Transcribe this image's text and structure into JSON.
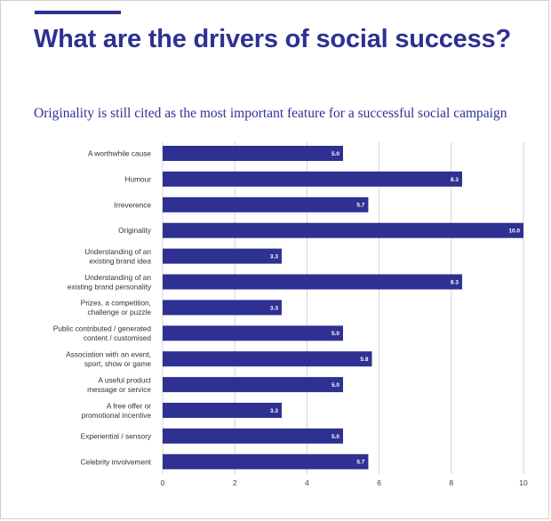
{
  "page": {
    "title": "What are the drivers of social success?",
    "subtitle": "Originality is still cited as the most important feature for a successful social campaign"
  },
  "colors": {
    "bar": "#2e3192",
    "grid": "#d4d4d4",
    "accent": "#2e3192"
  },
  "chart_data": {
    "type": "bar",
    "orientation": "horizontal",
    "title": "",
    "xlabel": "",
    "ylabel": "",
    "xlim": [
      0,
      10
    ],
    "xticks": [
      0,
      2,
      4,
      6,
      8,
      10
    ],
    "grid": true,
    "categories": [
      [
        "A worthwhile cause"
      ],
      [
        "Humour"
      ],
      [
        "Irreverence"
      ],
      [
        "Originality"
      ],
      [
        "Understanding of an",
        "existing brand idea"
      ],
      [
        "Understanding of an",
        "existing brand personality"
      ],
      [
        "Prizes, a competition,",
        "challenge or puzzle"
      ],
      [
        "Public contributed / generated",
        "content / customised"
      ],
      [
        "Association with an event,",
        "sport, show or game"
      ],
      [
        "A useful product",
        "message or service"
      ],
      [
        "A free offer or",
        "promotional incentive"
      ],
      [
        "Experiential / sensory"
      ],
      [
        "Celebrity involvement"
      ]
    ],
    "values": [
      5.0,
      8.3,
      5.7,
      10.0,
      3.3,
      8.3,
      3.3,
      5.0,
      5.8,
      5.0,
      3.3,
      5.0,
      5.7
    ],
    "value_labels": [
      "5.0",
      "8.3",
      "5.7",
      "10.0",
      "3.3",
      "8.3",
      "3.3",
      "5.0",
      "5.8",
      "5.0",
      "3.3",
      "5.0",
      "5.7"
    ]
  }
}
